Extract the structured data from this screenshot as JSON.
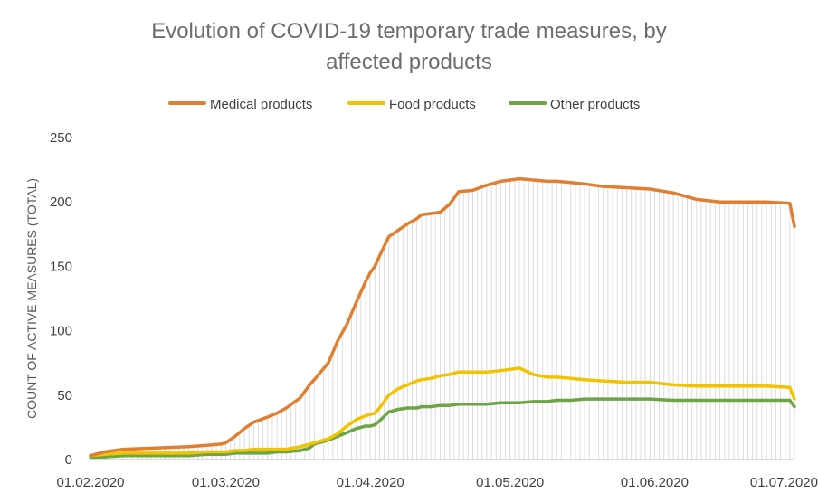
{
  "chart_data": {
    "type": "line",
    "title_lines": [
      "Evolution of COVID-19 temporary trade measures, by",
      "affected products"
    ],
    "ylabel": "COUNT OF ACTIVE MEASURES (TOTAL)",
    "xlabel": "",
    "ylim": [
      0,
      250
    ],
    "yticks": [
      "0",
      "50",
      "100",
      "150",
      "200",
      "250"
    ],
    "xticks": [
      "01.02.2020",
      "01.03.2020",
      "01.04.2020",
      "01.05.2020",
      "01.06.2020",
      "01.07.2020"
    ],
    "xtick_days": [
      0,
      29,
      60,
      90,
      121,
      151
    ],
    "x_days": [
      0,
      3,
      7,
      14,
      21,
      25,
      28,
      29,
      31,
      33,
      35,
      38,
      40,
      42,
      45,
      47,
      48,
      51,
      53,
      55,
      57,
      59,
      60,
      61,
      62,
      64,
      66,
      68,
      70,
      71,
      73,
      75,
      77,
      79,
      82,
      85,
      88,
      90,
      92,
      95,
      98,
      100,
      103,
      106,
      110,
      115,
      120,
      125,
      130,
      135,
      140,
      145,
      150,
      151
    ],
    "legend_position": "top-center",
    "colors": {
      "medical": "#e07f32",
      "food": "#f2c300",
      "other": "#6da544",
      "grid_fill": "#dcdcdc"
    },
    "series": [
      {
        "name": "Medical products",
        "color": "#e07f32",
        "values": [
          3,
          6,
          8,
          9,
          10,
          11,
          12,
          13,
          18,
          24,
          29,
          33,
          36,
          40,
          48,
          58,
          62,
          75,
          92,
          105,
          122,
          138,
          145,
          150,
          158,
          173,
          178,
          183,
          187,
          190,
          191,
          192,
          198,
          208,
          209,
          213,
          216,
          217,
          218,
          217,
          216,
          216,
          215,
          214,
          212,
          211,
          210,
          207,
          202,
          200,
          200,
          200,
          199,
          181
        ]
      },
      {
        "name": "Food products",
        "color": "#f2c300",
        "values": [
          3,
          4,
          5,
          5,
          5,
          6,
          6,
          6,
          7,
          7,
          8,
          8,
          8,
          8,
          10,
          12,
          13,
          16,
          20,
          26,
          31,
          34,
          35,
          36,
          40,
          50,
          55,
          58,
          61,
          62,
          63,
          65,
          66,
          68,
          68,
          68,
          69,
          70,
          71,
          66,
          64,
          64,
          63,
          62,
          61,
          60,
          60,
          58,
          57,
          57,
          57,
          57,
          56,
          47
        ]
      },
      {
        "name": "Other products",
        "color": "#6da544",
        "values": [
          2,
          2,
          3,
          3,
          3,
          4,
          4,
          4,
          5,
          5,
          5,
          5,
          6,
          6,
          7,
          9,
          12,
          15,
          18,
          21,
          24,
          26,
          26,
          27,
          30,
          37,
          39,
          40,
          40,
          41,
          41,
          42,
          42,
          43,
          43,
          43,
          44,
          44,
          44,
          45,
          45,
          46,
          46,
          47,
          47,
          47,
          47,
          46,
          46,
          46,
          46,
          46,
          46,
          41
        ]
      }
    ]
  }
}
